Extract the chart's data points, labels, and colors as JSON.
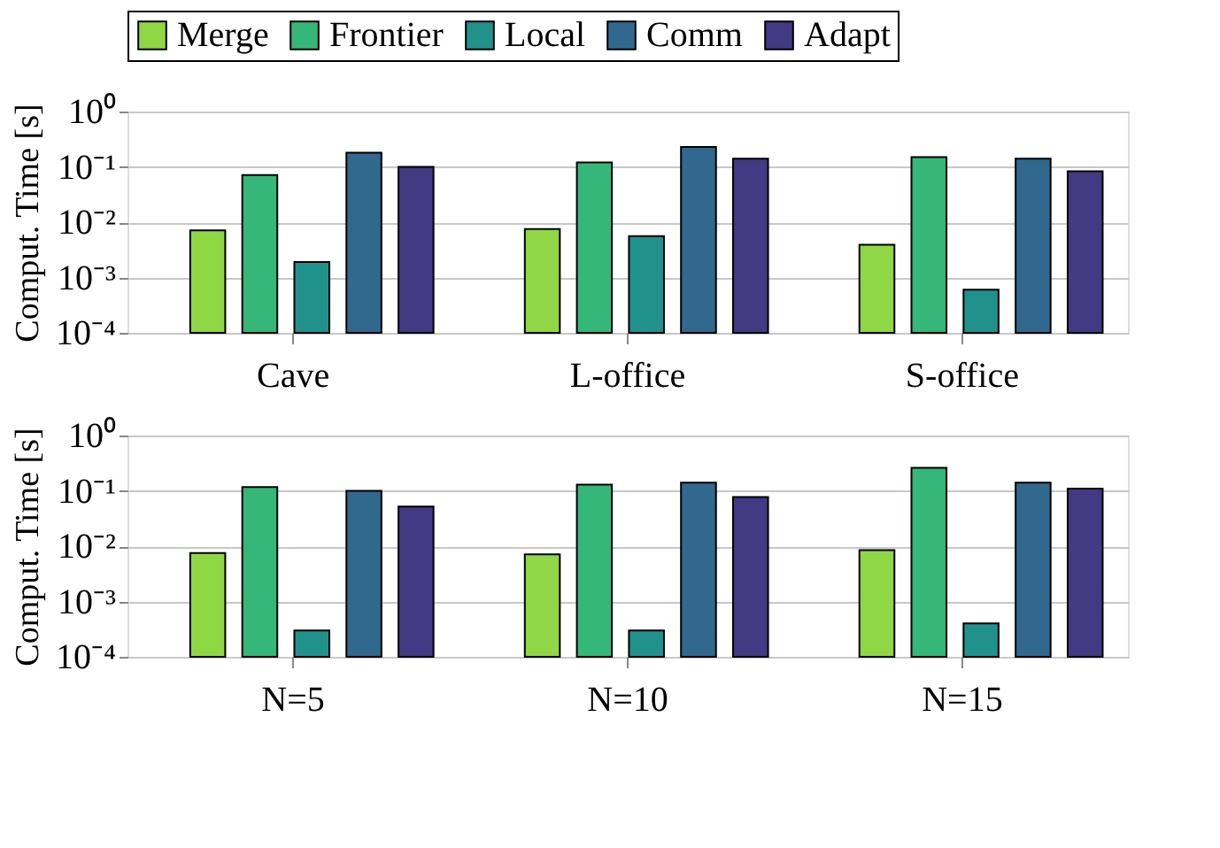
{
  "chart_data": [
    {
      "type": "bar",
      "ylabel": "Comput. Time [s]",
      "categories": [
        "Cave",
        "L-office",
        "S-office"
      ],
      "log": "y",
      "ylim": [
        0.0001,
        1
      ],
      "yticks": [
        {
          "value": 0.0001,
          "label": "10⁻⁴"
        },
        {
          "value": 0.001,
          "label": "10⁻³"
        },
        {
          "value": 0.01,
          "label": "10⁻²"
        },
        {
          "value": 0.1,
          "label": "10⁻¹"
        },
        {
          "value": 1,
          "label": "10⁰"
        }
      ],
      "grid": "y",
      "legend": "top",
      "series": [
        {
          "name": "Merge",
          "color": "#8fd744",
          "values": [
            0.0071,
            0.0075,
            0.0039
          ]
        },
        {
          "name": "Frontier",
          "color": "#35b779",
          "values": [
            0.071,
            0.12,
            0.15
          ]
        },
        {
          "name": "Local",
          "color": "#21918c",
          "values": [
            0.0019,
            0.0056,
            0.0006
          ]
        },
        {
          "name": "Comm",
          "color": "#31688e",
          "values": [
            0.18,
            0.23,
            0.14
          ]
        },
        {
          "name": "Adapt",
          "color": "#443983",
          "values": [
            0.1,
            0.14,
            0.083
          ]
        }
      ]
    },
    {
      "type": "bar",
      "ylabel": "Comput. Time [s]",
      "categories": [
        "N=5",
        "N=10",
        "N=15"
      ],
      "log": "y",
      "ylim": [
        0.0001,
        1
      ],
      "yticks": [
        {
          "value": 0.0001,
          "label": "10⁻⁴"
        },
        {
          "value": 0.001,
          "label": "10⁻³"
        },
        {
          "value": 0.01,
          "label": "10⁻²"
        },
        {
          "value": 0.1,
          "label": "10⁻¹"
        },
        {
          "value": 1,
          "label": "10⁰"
        }
      ],
      "grid": "y",
      "legend": "top",
      "series": [
        {
          "name": "Merge",
          "color": "#8fd744",
          "values": [
            0.0075,
            0.0071,
            0.0085
          ]
        },
        {
          "name": "Frontier",
          "color": "#35b779",
          "values": [
            0.117,
            0.13,
            0.26
          ]
        },
        {
          "name": "Local",
          "color": "#21918c",
          "values": [
            0.0003,
            0.0003,
            0.0004
          ]
        },
        {
          "name": "Comm",
          "color": "#31688e",
          "values": [
            0.1,
            0.14,
            0.14
          ]
        },
        {
          "name": "Adapt",
          "color": "#443983",
          "values": [
            0.052,
            0.077,
            0.11
          ]
        }
      ]
    }
  ]
}
